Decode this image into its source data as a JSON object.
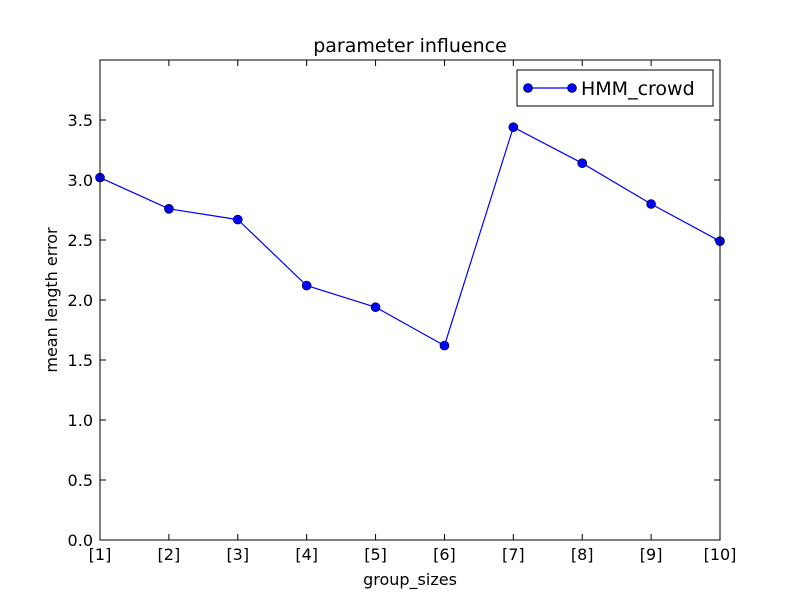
{
  "chart_data": {
    "type": "line",
    "title": "parameter influence",
    "xlabel": "group_sizes",
    "ylabel": "mean length error",
    "categories": [
      "[1]",
      "[2]",
      "[3]",
      "[4]",
      "[5]",
      "[6]",
      "[7]",
      "[8]",
      "[9]",
      "[10]"
    ],
    "series": [
      {
        "name": "HMM_crowd",
        "values": [
          3.02,
          2.76,
          2.67,
          2.12,
          1.94,
          1.62,
          3.44,
          3.14,
          2.8,
          2.49
        ],
        "color": "#0000ff",
        "marker": "circle"
      }
    ],
    "ylim": [
      0.0,
      4.0
    ],
    "yticks": [
      "0.0",
      "0.5",
      "1.0",
      "1.5",
      "2.0",
      "2.5",
      "3.0",
      "3.5"
    ],
    "grid": false,
    "legend_position": "top-right"
  }
}
